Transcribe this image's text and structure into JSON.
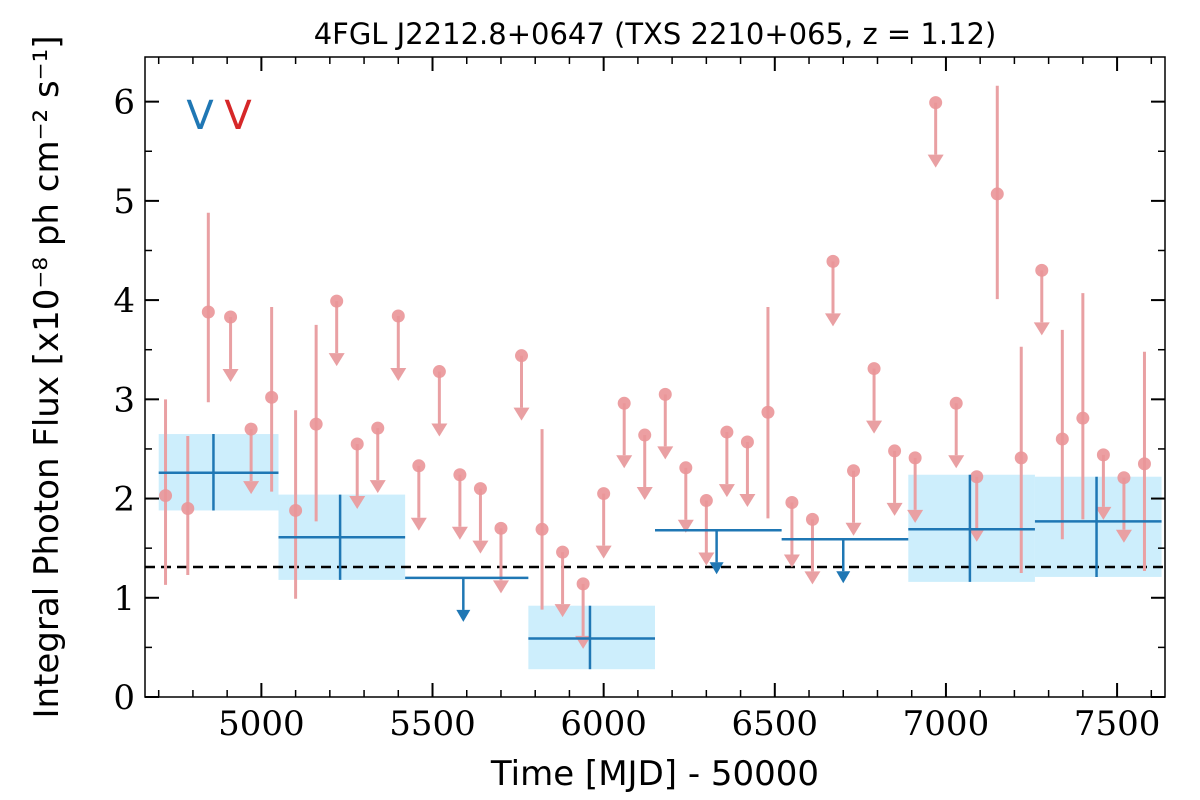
{
  "chart_data": {
    "type": "scatter",
    "title": "4FGL J2212.8+0647 (TXS 2210+065, z = 1.12)",
    "xlabel": "Time [MJD] - 50000",
    "ylabel": "Integral Photon Flux [x10⁻⁸ ph cm⁻² s⁻¹]",
    "xlim": [
      4660,
      7640
    ],
    "ylim": [
      0,
      6.45
    ],
    "x_ticks": [
      5000,
      5500,
      6000,
      6500,
      7000,
      7500
    ],
    "y_ticks": [
      0,
      1,
      2,
      3,
      4,
      5,
      6
    ],
    "x_tick_labels": [
      "5000",
      "5500",
      "6000",
      "6500",
      "7000",
      "7500"
    ],
    "y_tick_labels": [
      "0",
      "1",
      "2",
      "3",
      "4",
      "5",
      "6"
    ],
    "grid": false,
    "legend": {
      "placement": "top-left",
      "entries": [
        {
          "label": "V",
          "color": "#1f77b4"
        },
        {
          "label": "V",
          "color": "#d62728"
        }
      ]
    },
    "reference_line": {
      "y": 1.31,
      "style": "dashed",
      "color": "#000000"
    },
    "colors": {
      "long_bins": "#1f77b4",
      "long_band": "#cdeefc",
      "short_bins": "#e9a0a3",
      "short_points": "#ea9598"
    },
    "long_bins": [
      {
        "x_start": 4700,
        "x_end": 5050,
        "x": 4860,
        "y": 2.26,
        "y_low": 1.88,
        "y_high": 2.65,
        "upper_limit": false
      },
      {
        "x_start": 5050,
        "x_end": 5420,
        "x": 5230,
        "y": 1.61,
        "y_low": 1.18,
        "y_high": 2.04,
        "upper_limit": false
      },
      {
        "x_start": 5420,
        "x_end": 5780,
        "x": 5590,
        "y": 1.2,
        "upper_limit": true
      },
      {
        "x_start": 5780,
        "x_end": 6150,
        "x": 5960,
        "y": 0.59,
        "y_low": 0.28,
        "y_high": 0.92,
        "upper_limit": false
      },
      {
        "x_start": 6150,
        "x_end": 6520,
        "x": 6330,
        "y": 1.68,
        "upper_limit": true
      },
      {
        "x_start": 6520,
        "x_end": 6890,
        "x": 6700,
        "y": 1.59,
        "upper_limit": true
      },
      {
        "x_start": 6890,
        "x_end": 7260,
        "x": 7070,
        "y": 1.69,
        "y_low": 1.16,
        "y_high": 2.24,
        "upper_limit": false
      },
      {
        "x_start": 7260,
        "x_end": 7630,
        "x": 7440,
        "y": 1.77,
        "y_low": 1.21,
        "y_high": 2.22,
        "upper_limit": false
      }
    ],
    "short_bins": [
      {
        "x": 4720,
        "y": 2.03,
        "y_low": 1.13,
        "y_high": 3.0,
        "upper_limit": false
      },
      {
        "x": 4785,
        "y": 1.9,
        "y_low": 1.23,
        "y_high": 2.63,
        "upper_limit": false
      },
      {
        "x": 4845,
        "y": 3.88,
        "y_low": 2.97,
        "y_high": 4.88,
        "upper_limit": false
      },
      {
        "x": 4910,
        "y": 3.83,
        "upper_limit": true
      },
      {
        "x": 4970,
        "y": 2.7,
        "upper_limit": true
      },
      {
        "x": 5030,
        "y": 3.02,
        "y_low": 2.07,
        "y_high": 3.93,
        "upper_limit": false
      },
      {
        "x": 5100,
        "y": 1.88,
        "y_low": 0.99,
        "y_high": 2.89,
        "upper_limit": false
      },
      {
        "x": 5160,
        "y": 2.75,
        "y_low": 1.77,
        "y_high": 3.75,
        "upper_limit": false
      },
      {
        "x": 5220,
        "y": 3.99,
        "upper_limit": true
      },
      {
        "x": 5280,
        "y": 2.55,
        "upper_limit": true
      },
      {
        "x": 5340,
        "y": 2.71,
        "upper_limit": true
      },
      {
        "x": 5400,
        "y": 3.84,
        "upper_limit": true
      },
      {
        "x": 5460,
        "y": 2.33,
        "upper_limit": true
      },
      {
        "x": 5520,
        "y": 3.28,
        "upper_limit": true
      },
      {
        "x": 5580,
        "y": 2.24,
        "upper_limit": true
      },
      {
        "x": 5640,
        "y": 2.1,
        "upper_limit": true
      },
      {
        "x": 5700,
        "y": 1.7,
        "upper_limit": true
      },
      {
        "x": 5760,
        "y": 3.44,
        "upper_limit": true
      },
      {
        "x": 5820,
        "y": 1.69,
        "y_low": 0.88,
        "y_high": 2.7,
        "upper_limit": false
      },
      {
        "x": 5880,
        "y": 1.46,
        "upper_limit": true
      },
      {
        "x": 5940,
        "y": 1.14,
        "upper_limit": true
      },
      {
        "x": 6000,
        "y": 2.05,
        "upper_limit": true
      },
      {
        "x": 6060,
        "y": 2.96,
        "upper_limit": true
      },
      {
        "x": 6120,
        "y": 2.64,
        "upper_limit": true
      },
      {
        "x": 6180,
        "y": 3.05,
        "upper_limit": true
      },
      {
        "x": 6240,
        "y": 2.31,
        "upper_limit": true
      },
      {
        "x": 6300,
        "y": 1.98,
        "upper_limit": true
      },
      {
        "x": 6360,
        "y": 2.67,
        "upper_limit": true
      },
      {
        "x": 6420,
        "y": 2.57,
        "upper_limit": true
      },
      {
        "x": 6480,
        "y": 2.87,
        "y_low": 1.8,
        "y_high": 3.93,
        "upper_limit": false
      },
      {
        "x": 6550,
        "y": 1.96,
        "upper_limit": true
      },
      {
        "x": 6610,
        "y": 1.79,
        "upper_limit": true
      },
      {
        "x": 6670,
        "y": 4.39,
        "upper_limit": true
      },
      {
        "x": 6730,
        "y": 2.28,
        "upper_limit": true
      },
      {
        "x": 6790,
        "y": 3.31,
        "upper_limit": true
      },
      {
        "x": 6850,
        "y": 2.48,
        "upper_limit": true
      },
      {
        "x": 6910,
        "y": 2.41,
        "upper_limit": true
      },
      {
        "x": 6970,
        "y": 5.99,
        "upper_limit": true
      },
      {
        "x": 7030,
        "y": 2.96,
        "upper_limit": true
      },
      {
        "x": 7090,
        "y": 2.22,
        "upper_limit": true
      },
      {
        "x": 7150,
        "y": 5.07,
        "y_low": 4.01,
        "y_high": 6.16,
        "upper_limit": false
      },
      {
        "x": 7220,
        "y": 2.41,
        "y_low": 1.25,
        "y_high": 3.53,
        "upper_limit": false
      },
      {
        "x": 7280,
        "y": 4.3,
        "upper_limit": true
      },
      {
        "x": 7340,
        "y": 2.6,
        "y_low": 1.59,
        "y_high": 3.7,
        "upper_limit": false
      },
      {
        "x": 7400,
        "y": 2.81,
        "y_low": 1.79,
        "y_high": 4.07,
        "upper_limit": false
      },
      {
        "x": 7460,
        "y": 2.44,
        "upper_limit": true
      },
      {
        "x": 7520,
        "y": 2.21,
        "upper_limit": true
      },
      {
        "x": 7580,
        "y": 2.35,
        "y_low": 1.27,
        "y_high": 3.48,
        "upper_limit": false
      }
    ]
  }
}
